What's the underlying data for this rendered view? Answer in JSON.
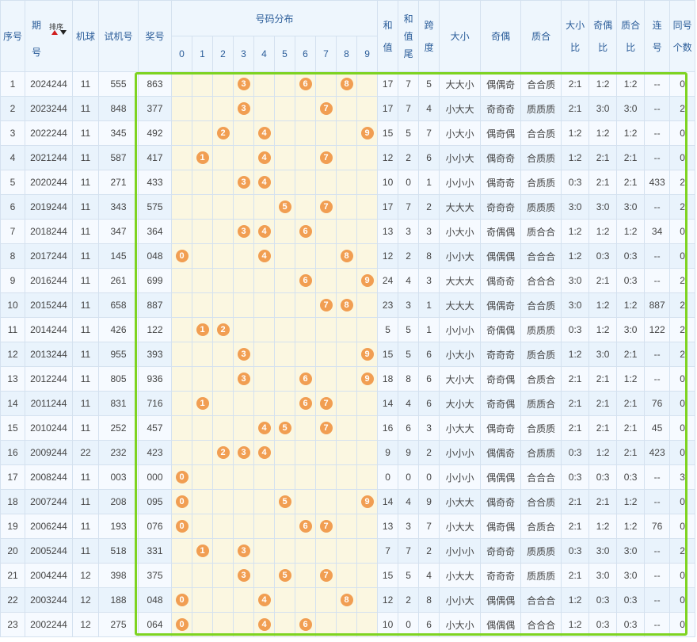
{
  "headers": {
    "seq": "序号",
    "issue_l1": "期",
    "issue_l2": "号",
    "sort_label": "排序",
    "machine": "机球",
    "trial": "试机号",
    "prize": "奖号",
    "distribution": "号码分布",
    "digits": [
      "0",
      "1",
      "2",
      "3",
      "4",
      "5",
      "6",
      "7",
      "8",
      "9"
    ],
    "sum_l1": "和",
    "sum_l2": "值",
    "sumtail_l1": "和",
    "sumtail_l2": "值",
    "sumtail_l3": "尾",
    "span_l1": "跨",
    "span_l2": "度",
    "bigsmall": "大小",
    "oddeven": "奇偶",
    "primecomp": "质合",
    "bsratio_l1": "大小",
    "bsratio_l2": "比",
    "oeratio_l1": "奇偶",
    "oeratio_l2": "比",
    "pcratio_l1": "质合",
    "pcratio_l2": "比",
    "consec_l1": "连",
    "consec_l2": "号",
    "same_l1": "同号",
    "same_l2": "个数"
  },
  "rows": [
    {
      "seq": "1",
      "issue": "2024244",
      "machine": "11",
      "trial": "555",
      "prize": "863",
      "digits": [
        3,
        6,
        8
      ],
      "sum": "17",
      "tail": "7",
      "span": "5",
      "bs": "大大小",
      "oe": "偶偶奇",
      "pc": "合合质",
      "bsr": "2:1",
      "oer": "1:2",
      "pcr": "1:2",
      "consec": "--",
      "same": "0"
    },
    {
      "seq": "2",
      "issue": "2023244",
      "machine": "11",
      "trial": "848",
      "prize": "377",
      "digits": [
        3,
        7
      ],
      "sum": "17",
      "tail": "7",
      "span": "4",
      "bs": "小大大",
      "oe": "奇奇奇",
      "pc": "质质质",
      "bsr": "2:1",
      "oer": "3:0",
      "pcr": "3:0",
      "consec": "--",
      "same": "2"
    },
    {
      "seq": "3",
      "issue": "2022244",
      "machine": "11",
      "trial": "345",
      "prize": "492",
      "digits": [
        2,
        4,
        9
      ],
      "sum": "15",
      "tail": "5",
      "span": "7",
      "bs": "小大小",
      "oe": "偶奇偶",
      "pc": "合合质",
      "bsr": "1:2",
      "oer": "1:2",
      "pcr": "1:2",
      "consec": "--",
      "same": "0"
    },
    {
      "seq": "4",
      "issue": "2021244",
      "machine": "11",
      "trial": "587",
      "prize": "417",
      "digits": [
        1,
        4,
        7
      ],
      "sum": "12",
      "tail": "2",
      "span": "6",
      "bs": "小小大",
      "oe": "偶奇奇",
      "pc": "合质质",
      "bsr": "1:2",
      "oer": "2:1",
      "pcr": "2:1",
      "consec": "--",
      "same": "0"
    },
    {
      "seq": "5",
      "issue": "2020244",
      "machine": "11",
      "trial": "271",
      "prize": "433",
      "digits": [
        3,
        4
      ],
      "sum": "10",
      "tail": "0",
      "span": "1",
      "bs": "小小小",
      "oe": "偶奇奇",
      "pc": "合质质",
      "bsr": "0:3",
      "oer": "2:1",
      "pcr": "2:1",
      "consec": "433",
      "same": "2"
    },
    {
      "seq": "6",
      "issue": "2019244",
      "machine": "11",
      "trial": "343",
      "prize": "575",
      "digits": [
        5,
        7
      ],
      "sum": "17",
      "tail": "7",
      "span": "2",
      "bs": "大大大",
      "oe": "奇奇奇",
      "pc": "质质质",
      "bsr": "3:0",
      "oer": "3:0",
      "pcr": "3:0",
      "consec": "--",
      "same": "2"
    },
    {
      "seq": "7",
      "issue": "2018244",
      "machine": "11",
      "trial": "347",
      "prize": "364",
      "digits": [
        3,
        4,
        6
      ],
      "sum": "13",
      "tail": "3",
      "span": "3",
      "bs": "小大小",
      "oe": "奇偶偶",
      "pc": "质合合",
      "bsr": "1:2",
      "oer": "1:2",
      "pcr": "1:2",
      "consec": "34",
      "same": "0"
    },
    {
      "seq": "8",
      "issue": "2017244",
      "machine": "11",
      "trial": "145",
      "prize": "048",
      "digits": [
        0,
        4,
        8
      ],
      "sum": "12",
      "tail": "2",
      "span": "8",
      "bs": "小小大",
      "oe": "偶偶偶",
      "pc": "合合合",
      "bsr": "1:2",
      "oer": "0:3",
      "pcr": "0:3",
      "consec": "--",
      "same": "0"
    },
    {
      "seq": "9",
      "issue": "2016244",
      "machine": "11",
      "trial": "261",
      "prize": "699",
      "digits": [
        6,
        9
      ],
      "sum": "24",
      "tail": "4",
      "span": "3",
      "bs": "大大大",
      "oe": "偶奇奇",
      "pc": "合合合",
      "bsr": "3:0",
      "oer": "2:1",
      "pcr": "0:3",
      "consec": "--",
      "same": "2"
    },
    {
      "seq": "10",
      "issue": "2015244",
      "machine": "11",
      "trial": "658",
      "prize": "887",
      "digits": [
        7,
        8
      ],
      "sum": "23",
      "tail": "3",
      "span": "1",
      "bs": "大大大",
      "oe": "偶偶奇",
      "pc": "合合质",
      "bsr": "3:0",
      "oer": "1:2",
      "pcr": "1:2",
      "consec": "887",
      "same": "2"
    },
    {
      "seq": "11",
      "issue": "2014244",
      "machine": "11",
      "trial": "426",
      "prize": "122",
      "digits": [
        1,
        2
      ],
      "sum": "5",
      "tail": "5",
      "span": "1",
      "bs": "小小小",
      "oe": "奇偶偶",
      "pc": "质质质",
      "bsr": "0:3",
      "oer": "1:2",
      "pcr": "3:0",
      "consec": "122",
      "same": "2"
    },
    {
      "seq": "12",
      "issue": "2013244",
      "machine": "11",
      "trial": "955",
      "prize": "393",
      "digits": [
        3,
        9
      ],
      "sum": "15",
      "tail": "5",
      "span": "6",
      "bs": "小大小",
      "oe": "奇奇奇",
      "pc": "质合质",
      "bsr": "1:2",
      "oer": "3:0",
      "pcr": "2:1",
      "consec": "--",
      "same": "2"
    },
    {
      "seq": "13",
      "issue": "2012244",
      "machine": "11",
      "trial": "805",
      "prize": "936",
      "digits": [
        3,
        6,
        9
      ],
      "sum": "18",
      "tail": "8",
      "span": "6",
      "bs": "大小大",
      "oe": "奇奇偶",
      "pc": "合质合",
      "bsr": "2:1",
      "oer": "2:1",
      "pcr": "1:2",
      "consec": "--",
      "same": "0"
    },
    {
      "seq": "14",
      "issue": "2011244",
      "machine": "11",
      "trial": "831",
      "prize": "716",
      "digits": [
        1,
        6,
        7
      ],
      "sum": "14",
      "tail": "4",
      "span": "6",
      "bs": "大小大",
      "oe": "奇奇偶",
      "pc": "质质合",
      "bsr": "2:1",
      "oer": "2:1",
      "pcr": "2:1",
      "consec": "76",
      "same": "0"
    },
    {
      "seq": "15",
      "issue": "2010244",
      "machine": "11",
      "trial": "252",
      "prize": "457",
      "digits": [
        4,
        5,
        7
      ],
      "sum": "16",
      "tail": "6",
      "span": "3",
      "bs": "小大大",
      "oe": "偶奇奇",
      "pc": "合质质",
      "bsr": "2:1",
      "oer": "2:1",
      "pcr": "2:1",
      "consec": "45",
      "same": "0"
    },
    {
      "seq": "16",
      "issue": "2009244",
      "machine": "22",
      "trial": "232",
      "prize": "423",
      "digits": [
        2,
        3,
        4
      ],
      "sum": "9",
      "tail": "9",
      "span": "2",
      "bs": "小小小",
      "oe": "偶偶奇",
      "pc": "合质质",
      "bsr": "0:3",
      "oer": "1:2",
      "pcr": "2:1",
      "consec": "423",
      "same": "0"
    },
    {
      "seq": "17",
      "issue": "2008244",
      "machine": "11",
      "trial": "003",
      "prize": "000",
      "digits": [
        0
      ],
      "sum": "0",
      "tail": "0",
      "span": "0",
      "bs": "小小小",
      "oe": "偶偶偶",
      "pc": "合合合",
      "bsr": "0:3",
      "oer": "0:3",
      "pcr": "0:3",
      "consec": "--",
      "same": "3"
    },
    {
      "seq": "18",
      "issue": "2007244",
      "machine": "11",
      "trial": "208",
      "prize": "095",
      "digits": [
        0,
        5,
        9
      ],
      "sum": "14",
      "tail": "4",
      "span": "9",
      "bs": "小大大",
      "oe": "偶奇奇",
      "pc": "合合质",
      "bsr": "2:1",
      "oer": "2:1",
      "pcr": "1:2",
      "consec": "--",
      "same": "0"
    },
    {
      "seq": "19",
      "issue": "2006244",
      "machine": "11",
      "trial": "193",
      "prize": "076",
      "digits": [
        0,
        6,
        7
      ],
      "sum": "13",
      "tail": "3",
      "span": "7",
      "bs": "小大大",
      "oe": "偶奇偶",
      "pc": "合质合",
      "bsr": "2:1",
      "oer": "1:2",
      "pcr": "1:2",
      "consec": "76",
      "same": "0"
    },
    {
      "seq": "20",
      "issue": "2005244",
      "machine": "11",
      "trial": "518",
      "prize": "331",
      "digits": [
        1,
        3
      ],
      "sum": "7",
      "tail": "7",
      "span": "2",
      "bs": "小小小",
      "oe": "奇奇奇",
      "pc": "质质质",
      "bsr": "0:3",
      "oer": "3:0",
      "pcr": "3:0",
      "consec": "--",
      "same": "2"
    },
    {
      "seq": "21",
      "issue": "2004244",
      "machine": "12",
      "trial": "398",
      "prize": "375",
      "digits": [
        3,
        5,
        7
      ],
      "sum": "15",
      "tail": "5",
      "span": "4",
      "bs": "小大大",
      "oe": "奇奇奇",
      "pc": "质质质",
      "bsr": "2:1",
      "oer": "3:0",
      "pcr": "3:0",
      "consec": "--",
      "same": "0"
    },
    {
      "seq": "22",
      "issue": "2003244",
      "machine": "12",
      "trial": "188",
      "prize": "048",
      "digits": [
        0,
        4,
        8
      ],
      "sum": "12",
      "tail": "2",
      "span": "8",
      "bs": "小小大",
      "oe": "偶偶偶",
      "pc": "合合合",
      "bsr": "1:2",
      "oer": "0:3",
      "pcr": "0:3",
      "consec": "--",
      "same": "0"
    },
    {
      "seq": "23",
      "issue": "2002244",
      "machine": "12",
      "trial": "275",
      "prize": "064",
      "digits": [
        0,
        4,
        6
      ],
      "sum": "10",
      "tail": "0",
      "span": "6",
      "bs": "小大小",
      "oe": "偶偶偶",
      "pc": "合合合",
      "bsr": "1:2",
      "oer": "0:3",
      "pcr": "0:3",
      "consec": "--",
      "same": "0"
    }
  ],
  "colors": {
    "ball": "#f19e52",
    "highlight_border": "#7ed321",
    "header_bg": "#eef6fd",
    "distribution_bg": "#fbf7e1"
  }
}
